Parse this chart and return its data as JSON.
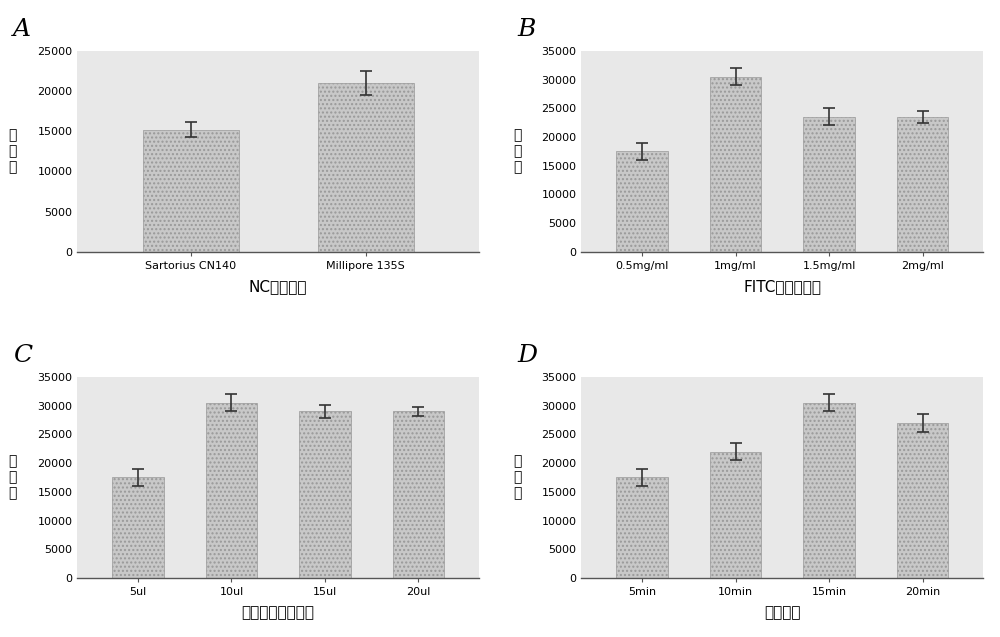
{
  "A": {
    "categories": [
      "Sartorius CN140",
      "Millipore 135S"
    ],
    "values": [
      15200,
      21000
    ],
    "errors": [
      900,
      1500
    ],
    "xlabel": "NC膜的材料",
    "ylabel": "峰\n面\n积",
    "ylim": [
      0,
      25000
    ],
    "yticks": [
      0,
      5000,
      10000,
      15000,
      20000,
      25000
    ],
    "panel_label": "A"
  },
  "B": {
    "categories": [
      "0.5mg/ml",
      "1mg/ml",
      "1.5mg/ml",
      "2mg/ml"
    ],
    "values": [
      17500,
      30500,
      23500,
      23500
    ],
    "errors": [
      1500,
      1500,
      1500,
      1000
    ],
    "xlabel": "FITC抗体的浓度",
    "ylabel": "峰\n面\n积",
    "ylim": [
      0,
      35000
    ],
    "yticks": [
      0,
      5000,
      10000,
      15000,
      20000,
      25000,
      30000,
      35000
    ],
    "panel_label": "B"
  },
  "C": {
    "categories": [
      "5ul",
      "10ul",
      "15ul",
      "20ul"
    ],
    "values": [
      17500,
      30500,
      29000,
      29000
    ],
    "errors": [
      1500,
      1500,
      1200,
      800
    ],
    "xlabel": "纳米酶探针的体积",
    "ylabel": "峰\n面\n积",
    "ylim": [
      0,
      35000
    ],
    "yticks": [
      0,
      5000,
      10000,
      15000,
      20000,
      25000,
      30000,
      35000
    ],
    "panel_label": "C"
  },
  "D": {
    "categories": [
      "5min",
      "10min",
      "15min",
      "20min"
    ],
    "values": [
      17500,
      22000,
      30500,
      27000
    ],
    "errors": [
      1500,
      1500,
      1500,
      1500
    ],
    "xlabel": "反应时间",
    "ylabel": "峰\n面\n积",
    "ylim": [
      0,
      35000
    ],
    "yticks": [
      0,
      5000,
      10000,
      15000,
      20000,
      25000,
      30000,
      35000
    ],
    "panel_label": "D"
  },
  "bar_color": "#c8c8c8",
  "bar_edgecolor": "#999999",
  "background_color": "#e8e8e8",
  "fig_background": "#ffffff",
  "hatch": "....",
  "error_color": "#333333",
  "fontsize_label": 10,
  "fontsize_tick": 8,
  "fontsize_panel": 18,
  "fontsize_xlabel": 11
}
